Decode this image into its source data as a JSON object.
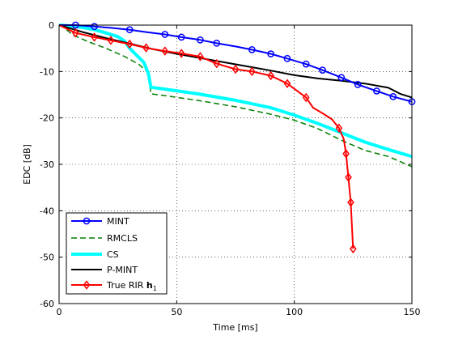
{
  "chart_data": {
    "type": "line",
    "title": "",
    "xlabel": "Time [ms]",
    "ylabel": "EDC [dB]",
    "xlim": [
      0,
      150
    ],
    "ylim": [
      -60,
      0
    ],
    "xticks": [
      0,
      50,
      100,
      150
    ],
    "yticks": [
      0,
      -10,
      -20,
      -30,
      -40,
      -50,
      -60
    ],
    "xtick_labels": [
      "0",
      "50",
      "100",
      "150"
    ],
    "ytick_labels": [
      "0",
      "-10",
      "-20",
      "-30",
      "-40",
      "-50",
      "-60"
    ],
    "grid": "on, dotted",
    "legend_position": "bottom-left",
    "series": [
      {
        "name": "MINT",
        "color": "#0000ff",
        "style": "solid",
        "marker": "circle",
        "width": 2,
        "x": [
          0,
          7,
          15,
          22,
          30,
          37,
          45,
          52,
          60,
          67,
          75,
          82,
          90,
          97,
          105,
          112,
          120,
          127,
          135,
          142,
          150
        ],
        "y": [
          0,
          0,
          -0.3,
          -0.6,
          -1.0,
          -1.5,
          -2.0,
          -2.6,
          -3.2,
          -3.9,
          -4.6,
          -5.3,
          -6.2,
          -7.2,
          -8.4,
          -9.7,
          -11.3,
          -12.8,
          -14.2,
          -15.4,
          -16.5
        ],
        "marker_x": [
          7,
          15,
          30,
          45,
          52,
          60,
          67,
          82,
          90,
          97,
          105,
          112,
          120,
          127,
          135,
          142,
          150
        ]
      },
      {
        "name": "RMCLS",
        "color": "#007f00",
        "style": "dashed",
        "marker": "none",
        "width": 1.5,
        "x": [
          0,
          2,
          6,
          9,
          12,
          20,
          28,
          34,
          38,
          39,
          45,
          60,
          75,
          90,
          100,
          110,
          120,
          130,
          140,
          150
        ],
        "y": [
          0,
          -0.5,
          -2.2,
          -2.8,
          -3.5,
          -5.0,
          -6.8,
          -8.5,
          -10.3,
          -14.8,
          -15.2,
          -16.3,
          -17.6,
          -19.2,
          -20.5,
          -22.3,
          -24.8,
          -27.0,
          -28.3,
          -30.5
        ]
      },
      {
        "name": "CS",
        "color": "#00ffff",
        "style": "solid",
        "marker": "none",
        "width": 4,
        "x": [
          0,
          5,
          10,
          15,
          20,
          25,
          28,
          30,
          33,
          36,
          38,
          39,
          45,
          60,
          75,
          90,
          100,
          110,
          120,
          130,
          140,
          150
        ],
        "y": [
          0,
          -0.2,
          -0.5,
          -1.0,
          -1.7,
          -2.5,
          -3.5,
          -5.0,
          -6.5,
          -8.0,
          -10.5,
          -13.4,
          -13.8,
          -14.9,
          -16.2,
          -17.8,
          -19.4,
          -21.2,
          -23.2,
          -25.2,
          -26.8,
          -28.3
        ]
      },
      {
        "name": "P-MINT",
        "color": "#000000",
        "style": "solid",
        "marker": "none",
        "width": 2,
        "x": [
          0,
          10,
          20,
          30,
          40,
          50,
          60,
          70,
          80,
          90,
          100,
          110,
          120,
          130,
          140,
          145,
          150
        ],
        "y": [
          0,
          -1.5,
          -2.8,
          -4.0,
          -5.2,
          -6.2,
          -7.1,
          -8.0,
          -8.9,
          -9.8,
          -10.8,
          -11.5,
          -12.0,
          -12.6,
          -13.5,
          -14.8,
          -15.6
        ]
      },
      {
        "name": "True RIR h1",
        "color": "#ff0000",
        "style": "solid",
        "marker": "diamond",
        "width": 2,
        "x": [
          0,
          7,
          15,
          22,
          30,
          37,
          45,
          52,
          60,
          67,
          75,
          82,
          90,
          97,
          105,
          108,
          112,
          116,
          119,
          121,
          122,
          123,
          124,
          125
        ],
        "y": [
          0,
          -1.7,
          -2.6,
          -3.3,
          -4.1,
          -4.9,
          -5.6,
          -6.1,
          -6.8,
          -8.3,
          -9.5,
          -10.0,
          -10.9,
          -12.6,
          -15.6,
          -17.8,
          -19.0,
          -20.3,
          -22.2,
          -24.5,
          -27.7,
          -32.8,
          -38.2,
          -48.2
        ],
        "marker_x": [
          7,
          15,
          22,
          30,
          37,
          45,
          52,
          60,
          67,
          75,
          82,
          90,
          97,
          105,
          119,
          122,
          123,
          124,
          125
        ]
      }
    ],
    "legend_label_main": "True RIR ",
    "legend_label_bold": "h",
    "legend_label_sub": "1"
  }
}
